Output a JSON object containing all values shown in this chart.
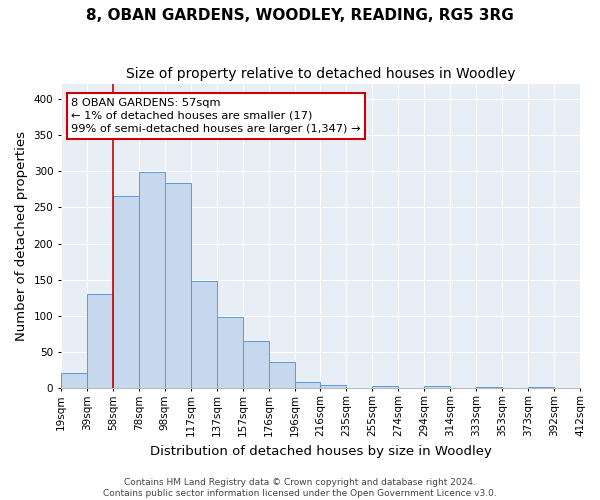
{
  "title": "8, OBAN GARDENS, WOODLEY, READING, RG5 3RG",
  "subtitle": "Size of property relative to detached houses in Woodley",
  "xlabel": "Distribution of detached houses by size in Woodley",
  "ylabel": "Number of detached properties",
  "bin_labels": [
    "19sqm",
    "39sqm",
    "58sqm",
    "78sqm",
    "98sqm",
    "117sqm",
    "137sqm",
    "157sqm",
    "176sqm",
    "196sqm",
    "216sqm",
    "235sqm",
    "255sqm",
    "274sqm",
    "294sqm",
    "314sqm",
    "333sqm",
    "353sqm",
    "373sqm",
    "392sqm",
    "412sqm"
  ],
  "bar_values": [
    21,
    130,
    265,
    298,
    284,
    148,
    98,
    65,
    37,
    9,
    5,
    0,
    3,
    0,
    3,
    0,
    2,
    0,
    2,
    0
  ],
  "bar_color": "#c5d8ed",
  "bar_edge_color": "#5b9bd5",
  "vline_x_index": 2,
  "vline_color": "#cc0000",
  "annotation_text": "8 OBAN GARDENS: 57sqm\n← 1% of detached houses are smaller (17)\n99% of semi-detached houses are larger (1,347) →",
  "annotation_box_color": "#ffffff",
  "annotation_box_edge": "#cc0000",
  "ylim": [
    0,
    420
  ],
  "yticks": [
    0,
    50,
    100,
    150,
    200,
    250,
    300,
    350,
    400
  ],
  "footer_line1": "Contains HM Land Registry data © Crown copyright and database right 2024.",
  "footer_line2": "Contains public sector information licensed under the Open Government Licence v3.0.",
  "background_color": "#ffffff",
  "plot_background": "#e8eef5",
  "grid_color": "#ffffff",
  "title_fontsize": 11,
  "subtitle_fontsize": 10,
  "axis_label_fontsize": 9.5,
  "tick_fontsize": 7.5,
  "footer_fontsize": 6.5
}
